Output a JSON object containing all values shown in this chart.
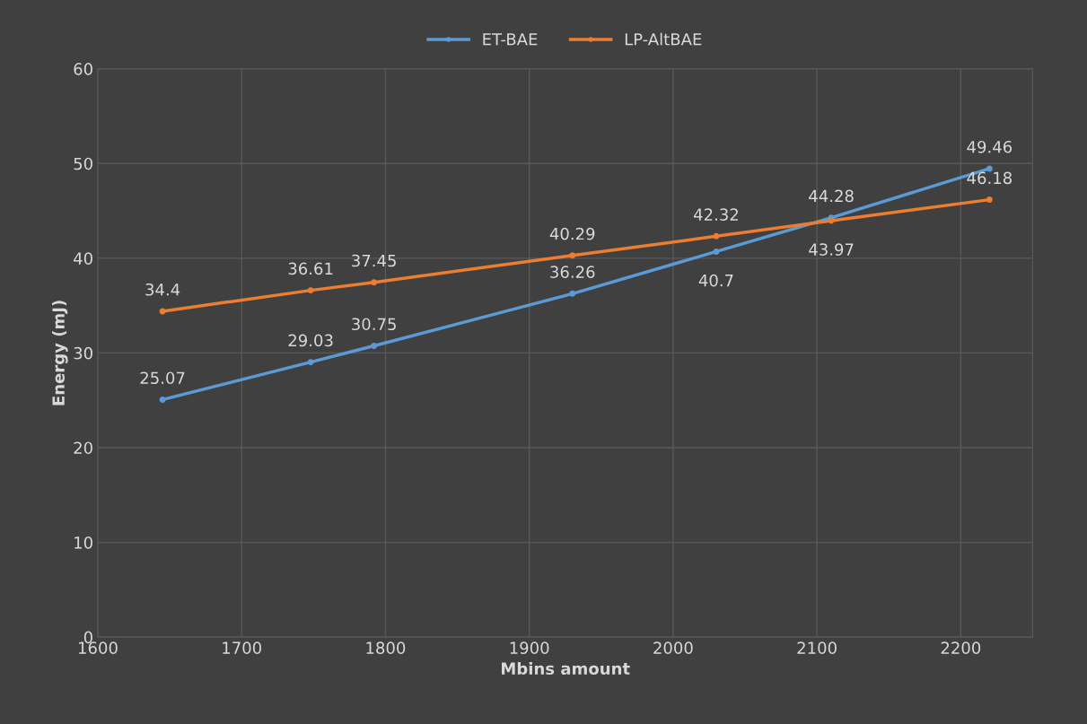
{
  "chart_data": {
    "type": "line",
    "xlabel": "Mbins amount",
    "ylabel": "Energy (mJ)",
    "x": [
      1645,
      1748,
      1792,
      1930,
      2030,
      2110,
      2220
    ],
    "series": [
      {
        "name": "ET-BAE",
        "color": "#5b9bd5",
        "values": [
          25.07,
          29.03,
          30.75,
          36.26,
          40.7,
          44.28,
          49.46
        ]
      },
      {
        "name": "LP-AltBAE",
        "color": "#ed7d31",
        "values": [
          34.4,
          36.61,
          37.45,
          40.29,
          42.32,
          43.97,
          46.18
        ]
      }
    ],
    "xlim": [
      1600,
      2250
    ],
    "xticks": [
      1600,
      1700,
      1800,
      1900,
      2000,
      2100,
      2200
    ],
    "ylim": [
      0,
      60
    ],
    "yticks": [
      0,
      10,
      20,
      30,
      40,
      50,
      60
    ],
    "grid": true,
    "legend": "top",
    "marker": "circle",
    "line_style": "solid",
    "data_labels": true
  }
}
